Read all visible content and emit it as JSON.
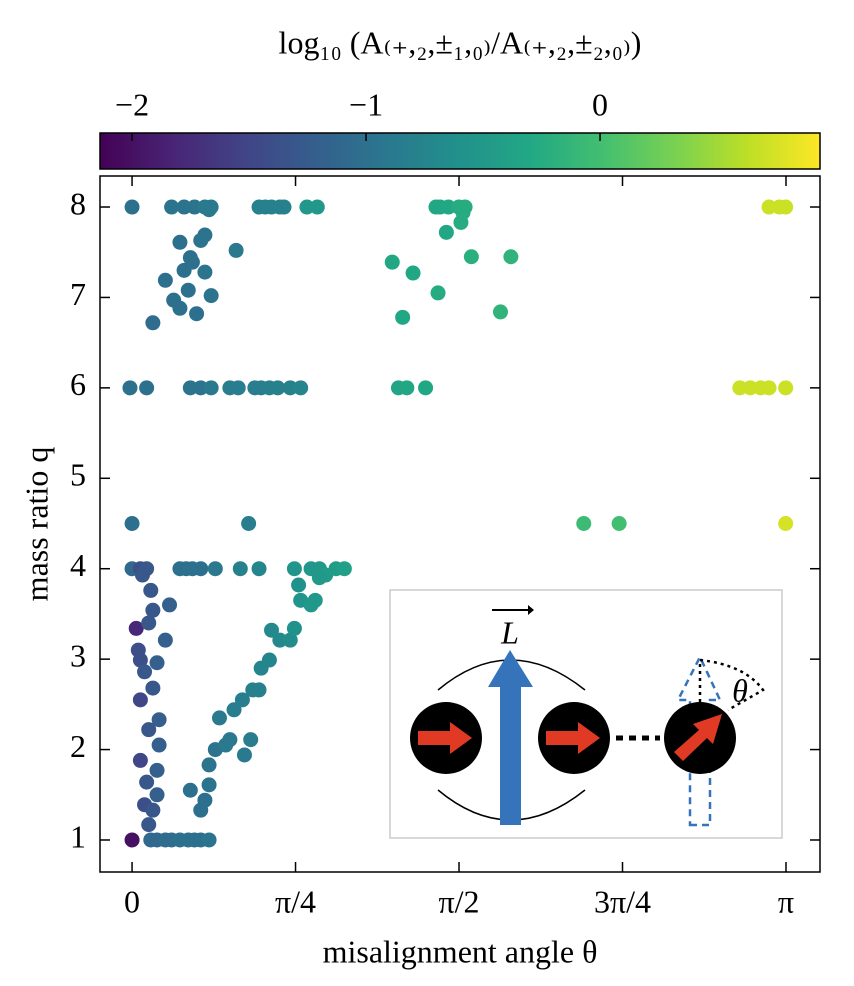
{
  "chart_data": {
    "type": "scatter",
    "title": "log₁₀ (A₍₊,₂,±₁,₀₎/A₍₊,₂,±₂,₀₎)",
    "xlabel": "misalignment angle θ",
    "ylabel": "mass ratio q",
    "colormap": "viridis",
    "clim": [
      -2.137,
      0.94
    ],
    "cticks": [
      {
        "value": -2,
        "label": "−2"
      },
      {
        "value": -1,
        "label": "−1"
      },
      0
    ],
    "xlim": [
      -0.154,
      3.305
    ],
    "ylim": [
      0.646,
      8.343
    ],
    "xticks": [
      0,
      {
        "value": 0.7854,
        "label": "π/4"
      },
      {
        "value": 1.5708,
        "label": "π/2"
      },
      {
        "value": 2.3562,
        "label": "3π/4"
      },
      {
        "value": 3.1416,
        "label": "π"
      }
    ],
    "yticks": [
      1,
      2,
      3,
      4,
      5,
      6,
      7,
      8
    ],
    "x": [
      0,
      0.19,
      0.25,
      0.3,
      0.35,
      0.38,
      0.61,
      0.64,
      0.67,
      0.71,
      0.73,
      0.84,
      0.89,
      1.46,
      1.48,
      1.52,
      1.57,
      1.6,
      3.06,
      3.11,
      3.14,
      0.23,
      0.28,
      0.29,
      0.33,
      0.35,
      0.37,
      0.25,
      0.5,
      0.35,
      0.2,
      0.16,
      0.27,
      0.31,
      0.38,
      0.1,
      0.23,
      1.25,
      1.35,
      1.3,
      1.47,
      1.51,
      1.58,
      1.59,
      1.63,
      1.77,
      1.82,
      -0.01,
      0.07,
      0.28,
      0.33,
      0.38,
      0.47,
      0.51,
      0.59,
      0.62,
      0.66,
      0.7,
      0.76,
      0.81,
      1.28,
      1.32,
      1.41,
      2.92,
      2.97,
      3.02,
      3.06,
      3.14,
      0,
      0.56,
      2.17,
      2.34,
      3.14,
      0,
      0.04,
      0.07,
      0.23,
      0.26,
      0.29,
      0.33,
      0.4,
      0.52,
      0.61,
      0.78,
      0.86,
      0.9,
      0.98,
      1.02,
      0.05,
      0.09,
      0.1,
      0.02,
      0.08,
      0.03,
      0.04,
      0.12,
      0.06,
      0.1,
      0.04,
      0.13,
      0.08,
      0.13,
      0.04,
      0.12,
      0.07,
      0.12,
      0.06,
      0.1,
      0.08,
      0,
      0.09,
      0.12,
      0.16,
      0.19,
      0.23,
      0.27,
      0.3,
      0.33,
      0.37,
      0.35,
      0.33,
      0.28,
      0.37,
      0.37,
      0.4,
      0.45,
      0.47,
      0.42,
      0.49,
      0.53,
      0.58,
      0.61,
      0.62,
      0.66,
      0.67,
      0.71,
      0.76,
      0.78,
      0.81,
      0.86,
      0.88,
      0.93,
      0.9,
      0.8,
      0.57,
      0.54,
      0.18,
      0.16
    ],
    "y": [
      8,
      8,
      8,
      8,
      8,
      8,
      8,
      8,
      8,
      8,
      8,
      8,
      8,
      8,
      8,
      8,
      8,
      8,
      8,
      8,
      8,
      7.61,
      7.44,
      7.39,
      7.63,
      7.69,
      7.97,
      7.3,
      7.52,
      7.28,
      6.97,
      7.19,
      7.08,
      6.82,
      7.02,
      6.72,
      6.88,
      7.39,
      7.27,
      6.78,
      7.05,
      7.72,
      7.83,
      7.94,
      7.45,
      6.84,
      7.45,
      6,
      6,
      6,
      6,
      6,
      6,
      6,
      6,
      6,
      6,
      6,
      6,
      6,
      6,
      6,
      6,
      6,
      6,
      6,
      6,
      6,
      4.5,
      4.5,
      4.5,
      4.5,
      4.5,
      4,
      4,
      4,
      4,
      4,
      4,
      4,
      4,
      4,
      4,
      4,
      4,
      4,
      4,
      4,
      3.93,
      3.76,
      3.54,
      3.34,
      3.4,
      3.1,
      2.99,
      2.96,
      2.86,
      2.68,
      2.55,
      2.33,
      2.22,
      2.05,
      1.88,
      1.77,
      1.64,
      1.5,
      1.39,
      1.33,
      1.17,
      1,
      1,
      1,
      1,
      1,
      1,
      1,
      1,
      1,
      1,
      1.44,
      1.33,
      1.55,
      1.61,
      1.83,
      2.0,
      2.05,
      2.11,
      2.35,
      2.44,
      2.55,
      2.66,
      2.66,
      2.9,
      2.99,
      3.32,
      3.21,
      3.21,
      3.34,
      3.65,
      3.6,
      3.65,
      3.93,
      3.9,
      3.82,
      2.11,
      1.94,
      3.6,
      3.21
    ],
    "c": [
      -1.0,
      -0.95,
      -0.95,
      -0.95,
      -0.9,
      -0.9,
      -0.8,
      -0.8,
      -0.8,
      -0.8,
      -0.8,
      -0.5,
      -0.5,
      -0.3,
      -0.3,
      -0.3,
      -0.25,
      -0.25,
      0.7,
      0.7,
      0.7,
      -1.0,
      -1.0,
      -1.0,
      -0.95,
      -0.95,
      -0.9,
      -1.0,
      -0.9,
      -0.95,
      -1.0,
      -1.0,
      -1.0,
      -1.0,
      -0.95,
      -1.05,
      -1.0,
      -0.3,
      -0.3,
      -0.3,
      -0.25,
      -0.3,
      -0.25,
      -0.25,
      -0.2,
      -0.15,
      -0.15,
      -1.0,
      -1.0,
      -0.95,
      -0.95,
      -0.9,
      -0.85,
      -0.85,
      -0.85,
      -0.85,
      -0.8,
      -0.8,
      -0.8,
      -0.75,
      -0.35,
      -0.3,
      -0.3,
      0.7,
      0.7,
      0.7,
      0.7,
      0.7,
      -1.0,
      -0.85,
      -0.05,
      0.0,
      0.75,
      -1.1,
      -1.4,
      -1.3,
      -1.0,
      -1.0,
      -1.0,
      -1.0,
      -0.9,
      -0.8,
      -0.75,
      -0.55,
      -0.5,
      -0.5,
      -0.45,
      -0.4,
      -1.3,
      -1.3,
      -1.3,
      -1.8,
      -1.3,
      -1.4,
      -1.4,
      -1.2,
      -1.3,
      -1.3,
      -1.5,
      -1.2,
      -1.3,
      -1.2,
      -1.5,
      -1.2,
      -1.3,
      -1.2,
      -1.4,
      -1.3,
      -1.3,
      -2.0,
      -1.1,
      -1.1,
      -1.05,
      -1.05,
      -1.0,
      -1.0,
      -1.0,
      -1.0,
      -0.95,
      -1.0,
      -1.0,
      -1.0,
      -0.95,
      -0.95,
      -0.95,
      -0.9,
      -0.9,
      -0.9,
      -0.85,
      -0.85,
      -0.8,
      -0.8,
      -0.75,
      -0.75,
      -0.7,
      -0.7,
      -0.65,
      -0.6,
      -0.55,
      -0.5,
      -0.5,
      -0.45,
      -0.5,
      -0.6,
      -0.85,
      -0.9,
      -1.2,
      -1.2
    ]
  },
  "inset": {
    "vector_label": "L",
    "angle_label": "θ"
  }
}
